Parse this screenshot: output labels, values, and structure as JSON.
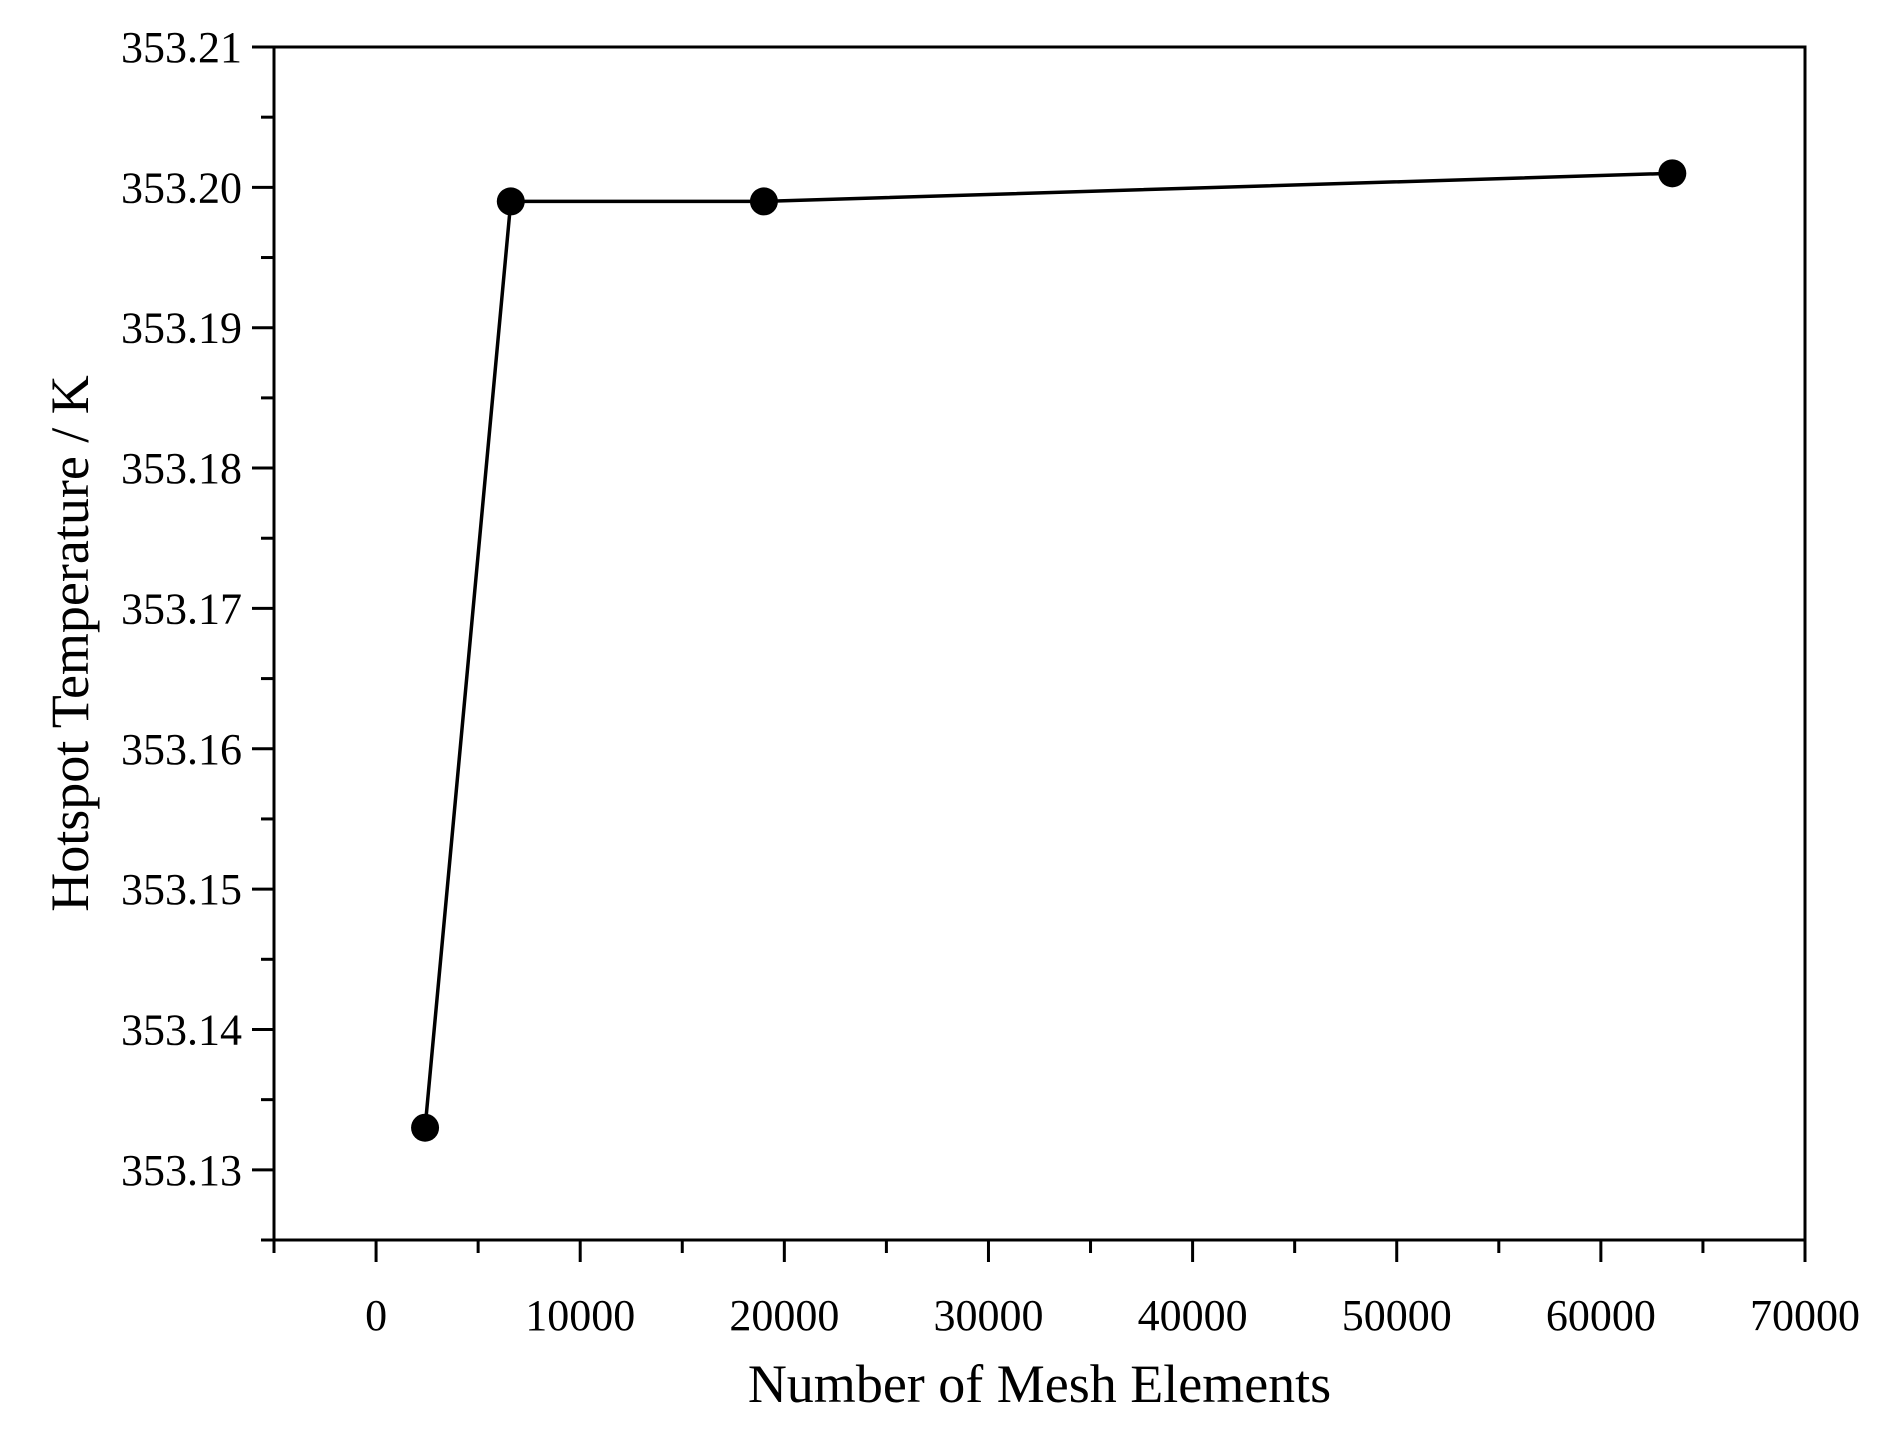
{
  "chart_data": {
    "type": "line",
    "title": "",
    "xlabel": "Number of Mesh Elements",
    "ylabel": "Hotspot Temperature / K",
    "xlim": [
      -5000,
      70000
    ],
    "ylim": [
      353.125,
      353.21
    ],
    "x_ticks": [
      0,
      10000,
      20000,
      30000,
      40000,
      50000,
      60000,
      70000
    ],
    "x_tick_labels": [
      "0",
      "10000",
      "20000",
      "30000",
      "40000",
      "50000",
      "60000",
      "70000"
    ],
    "y_ticks": [
      353.13,
      353.14,
      353.15,
      353.16,
      353.17,
      353.18,
      353.19,
      353.2,
      353.21
    ],
    "y_tick_labels": [
      "353.13",
      "353.14",
      "353.15",
      "353.16",
      "353.17",
      "353.18",
      "353.19",
      "353.20",
      "353.21"
    ],
    "grid": false,
    "legend": "none",
    "series": [
      {
        "color": "#000000",
        "marker": "circle",
        "points": [
          {
            "x": 2400,
            "y": 353.133
          },
          {
            "x": 6600,
            "y": 353.199
          },
          {
            "x": 19000,
            "y": 353.199
          },
          {
            "x": 63500,
            "y": 353.201
          }
        ]
      }
    ]
  }
}
